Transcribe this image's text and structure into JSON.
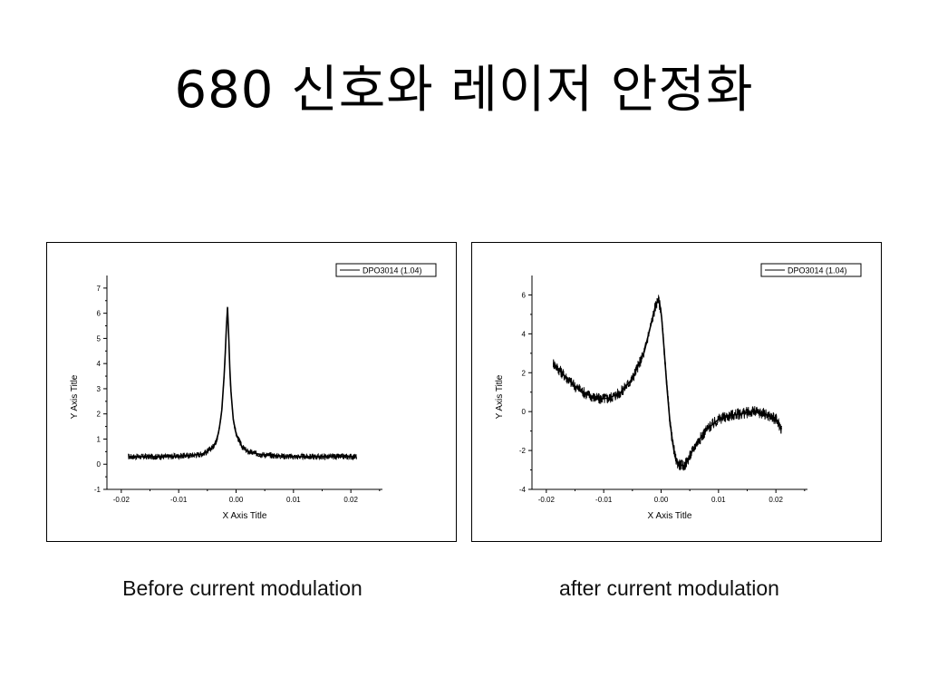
{
  "slide": {
    "title": "680 신호와 레이저 안정화"
  },
  "captions": {
    "before": "Before current modulation",
    "after": "after current modulation"
  },
  "chart_data": [
    {
      "type": "line",
      "id": "before",
      "xlabel": "X Axis Title",
      "ylabel": "Y Axis Title",
      "xlim": [
        -0.0225,
        0.0255
      ],
      "ylim": [
        -1,
        7.5
      ],
      "xticks": [
        -0.02,
        -0.01,
        0.0,
        0.01,
        0.02
      ],
      "xtick_labels": [
        "-0.02",
        "-0.01",
        "0.00",
        "0.01",
        "0.02"
      ],
      "yticks": [
        -1,
        0,
        1,
        2,
        3,
        4,
        5,
        6,
        7
      ],
      "ytick_labels": [
        "-1",
        "0",
        "1",
        "2",
        "3",
        "4",
        "5",
        "6",
        "7"
      ],
      "legend_position": "top-right",
      "series": [
        {
          "name": "DPO3014 (1.04)",
          "noise": 0.12,
          "x": [
            -0.0188,
            -0.016,
            -0.012,
            -0.008,
            -0.006,
            -0.005,
            -0.004,
            -0.0035,
            -0.003,
            -0.0025,
            -0.002,
            -0.0017,
            -0.0015,
            -0.0013,
            -0.001,
            -0.0005,
            0.0,
            0.001,
            0.002,
            0.004,
            0.006,
            0.01,
            0.015,
            0.021
          ],
          "y": [
            0.3,
            0.3,
            0.3,
            0.35,
            0.4,
            0.5,
            0.7,
            0.9,
            1.3,
            2.1,
            3.8,
            5.4,
            6.3,
            5.2,
            3.2,
            1.8,
            1.2,
            0.7,
            0.5,
            0.4,
            0.35,
            0.3,
            0.3,
            0.3
          ]
        }
      ]
    },
    {
      "type": "line",
      "id": "after",
      "xlabel": "X Axis Title",
      "ylabel": "Y Axis Title",
      "xlim": [
        -0.0225,
        0.0255
      ],
      "ylim": [
        -4,
        7
      ],
      "xticks": [
        -0.02,
        -0.01,
        0.0,
        0.01,
        0.02
      ],
      "xtick_labels": [
        "-0.02",
        "-0.01",
        "0.00",
        "0.01",
        "0.02"
      ],
      "yticks": [
        -4,
        -2,
        0,
        2,
        4,
        6
      ],
      "ytick_labels": [
        "-4",
        "-2",
        "0",
        "2",
        "4",
        "6"
      ],
      "legend_position": "top-right",
      "series": [
        {
          "name": "DPO3014 (1.04)",
          "noise": 0.3,
          "x": [
            -0.0188,
            -0.017,
            -0.015,
            -0.013,
            -0.011,
            -0.009,
            -0.007,
            -0.005,
            -0.003,
            -0.002,
            -0.001,
            -0.0005,
            0.0,
            0.0005,
            0.001,
            0.0015,
            0.002,
            0.0025,
            0.003,
            0.004,
            0.005,
            0.006,
            0.008,
            0.01,
            0.012,
            0.014,
            0.016,
            0.018,
            0.02,
            0.021
          ],
          "y": [
            2.5,
            1.9,
            1.3,
            0.9,
            0.65,
            0.7,
            1.0,
            1.7,
            3.0,
            4.2,
            5.4,
            5.8,
            5.2,
            3.3,
            1.3,
            -0.4,
            -1.6,
            -2.4,
            -2.7,
            -2.8,
            -2.3,
            -1.7,
            -0.9,
            -0.4,
            -0.2,
            -0.1,
            0.0,
            -0.1,
            -0.4,
            -0.9
          ]
        }
      ]
    }
  ]
}
